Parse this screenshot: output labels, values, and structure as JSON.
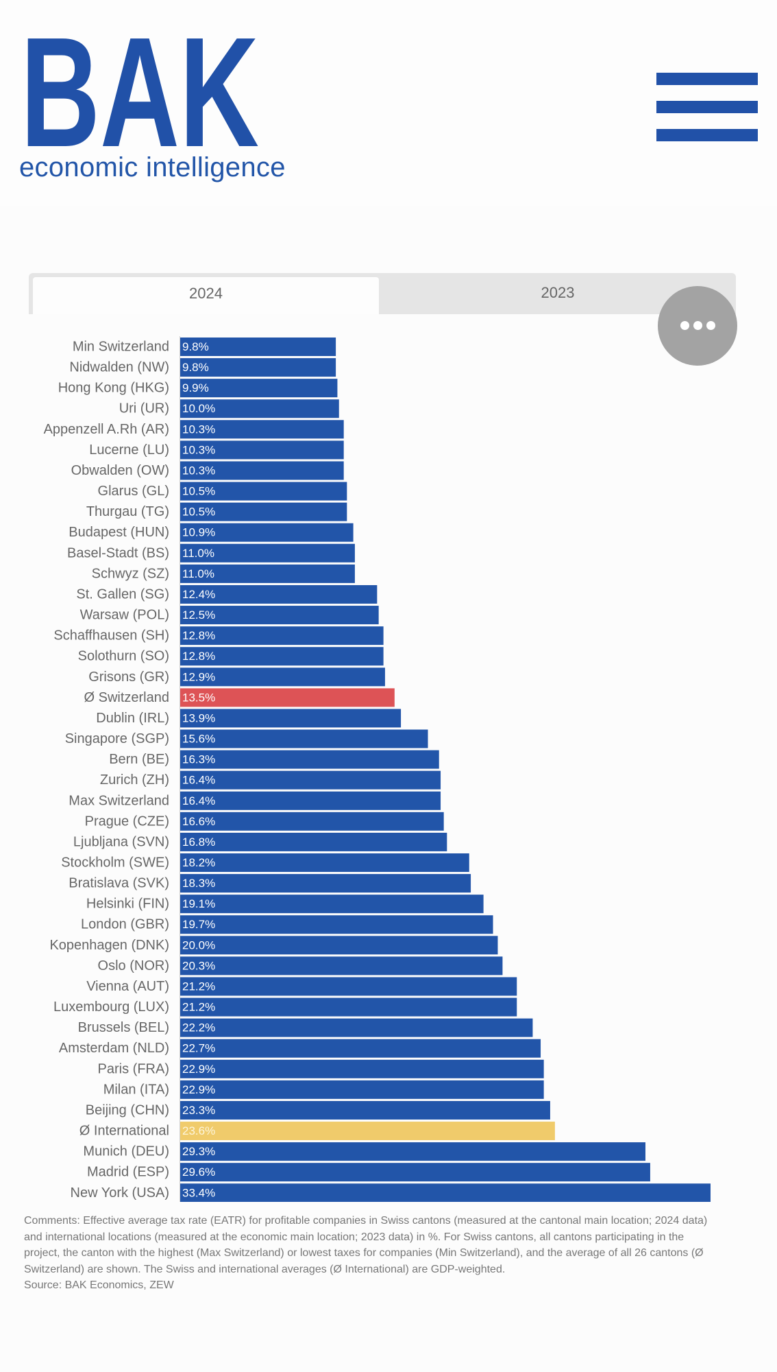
{
  "brand": {
    "logo_text": "BAK",
    "tagline": "economic intelligence",
    "color": "#2151a8"
  },
  "icons": {
    "menu": "hamburger-menu-icon",
    "more": "more-horizontal-icon"
  },
  "tabs": [
    {
      "label": "2024",
      "active": true
    },
    {
      "label": "2023",
      "active": false
    }
  ],
  "chart_data": {
    "type": "bar",
    "orientation": "horizontal",
    "unit": "%",
    "xlim": [
      0,
      33.4
    ],
    "colors": {
      "default": "#2255a9",
      "swiss_average": "#dd5356",
      "international_average": "#f0cb6b",
      "default_label": "#ffffff",
      "swiss_average_label": "#ffffff",
      "international_average_label": "#fdf6dc",
      "category_label": "#666666"
    },
    "categories": [
      "Min Switzerland",
      "Nidwalden (NW)",
      "Hong Kong (HKG)",
      "Uri (UR)",
      "Appenzell A.Rh (AR)",
      "Lucerne (LU)",
      "Obwalden (OW)",
      "Glarus (GL)",
      "Thurgau (TG)",
      "Budapest (HUN)",
      "Basel-Stadt (BS)",
      "Schwyz (SZ)",
      "St. Gallen (SG)",
      "Warsaw (POL)",
      "Schaffhausen (SH)",
      "Solothurn (SO)",
      "Grisons (GR)",
      "Ø Switzerland",
      "Dublin (IRL)",
      "Singapore (SGP)",
      "Bern (BE)",
      "Zurich (ZH)",
      "Max Switzerland",
      "Prague (CZE)",
      "Ljubljana (SVN)",
      "Stockholm (SWE)",
      "Bratislava (SVK)",
      "Helsinki (FIN)",
      "London (GBR)",
      "Kopenhagen (DNK)",
      "Oslo (NOR)",
      "Vienna (AUT)",
      "Luxembourg (LUX)",
      "Brussels (BEL)",
      "Amsterdam (NLD)",
      "Paris (FRA)",
      "Milan (ITA)",
      "Beijing (CHN)",
      "Ø International",
      "Munich (DEU)",
      "Madrid (ESP)",
      "New York (USA)"
    ],
    "values": [
      9.8,
      9.8,
      9.9,
      10.0,
      10.3,
      10.3,
      10.3,
      10.5,
      10.5,
      10.9,
      11.0,
      11.0,
      12.4,
      12.5,
      12.8,
      12.8,
      12.9,
      13.5,
      13.9,
      15.6,
      16.3,
      16.4,
      16.4,
      16.6,
      16.8,
      18.2,
      18.3,
      19.1,
      19.7,
      20.0,
      20.3,
      21.2,
      21.2,
      22.2,
      22.7,
      22.9,
      22.9,
      23.3,
      23.6,
      29.3,
      29.6,
      33.4
    ],
    "highlight": {
      "Ø Switzerland": "swiss_average",
      "Ø International": "international_average"
    }
  },
  "notes": {
    "comments": "Comments: Effective average tax rate (EATR) for profitable companies in Swiss cantons (measured at the cantonal main location; 2024 data) and international locations (measured at the economic main location; 2023 data) in %. For Swiss cantons, all cantons participating in the project, the canton with the highest (Max Switzerland) or lowest taxes for companies (Min Switzerland), and the average of all 26 cantons (Ø Switzerland) are shown. The Swiss and international averages (Ø International) are GDP-weighted.",
    "source": "Source: BAK Economics, ZEW"
  }
}
